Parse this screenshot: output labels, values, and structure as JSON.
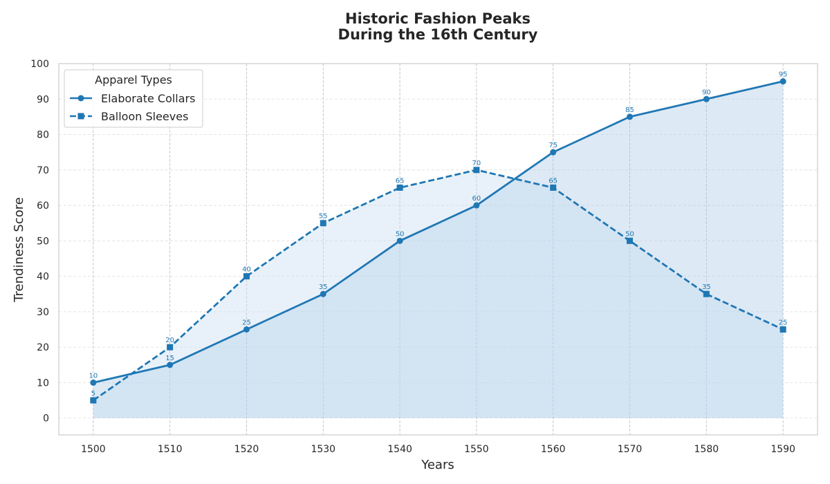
{
  "chart_data": {
    "type": "line",
    "title_lines": [
      "Historic Fashion Peaks",
      "During the 16th Century"
    ],
    "xlabel": "Years",
    "ylabel": "Trendiness Score",
    "x": [
      1500,
      1510,
      1520,
      1530,
      1540,
      1550,
      1560,
      1570,
      1580,
      1590
    ],
    "xlim": [
      1495.5,
      1594.5
    ],
    "ylim": [
      -4.75,
      100
    ],
    "yticks": [
      0,
      10,
      20,
      30,
      40,
      50,
      60,
      70,
      80,
      90,
      100
    ],
    "grid": true,
    "fill_under_lines": true,
    "legend": {
      "title": "Apparel Types",
      "placement": "top-left"
    },
    "series": [
      {
        "name": "Elaborate Collars",
        "values": [
          10,
          15,
          25,
          35,
          50,
          60,
          75,
          85,
          90,
          95
        ],
        "line_style": "solid",
        "marker": "circle",
        "color": "#1f77b4",
        "fill_color": "#a9c9e4"
      },
      {
        "name": "Balloon Sleeves",
        "values": [
          5,
          20,
          40,
          55,
          65,
          70,
          65,
          50,
          35,
          25
        ],
        "line_style": "dashed",
        "marker": "square",
        "color": "#1f77b4",
        "fill_color": "#c6dcef"
      }
    ]
  }
}
